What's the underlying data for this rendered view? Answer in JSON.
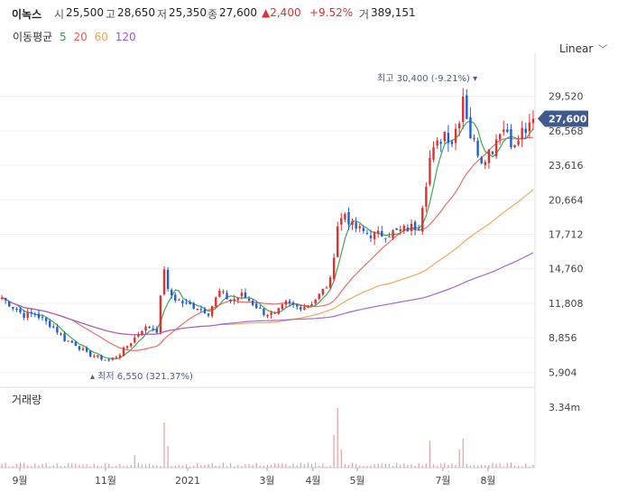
{
  "header": {
    "stock_name": "이녹스",
    "open_label": "시",
    "open_value": "25,500",
    "high_label": "고",
    "high_value": "28,650",
    "low_label": "저",
    "low_value": "25,350",
    "close_label": "종",
    "close_value": "27,600",
    "change_value": "▲2,400",
    "change_pct": "+9.52%",
    "volume_label": "거",
    "volume_value": "389,151"
  },
  "ma_legend": {
    "label": "이동평균",
    "items": [
      {
        "period": "5",
        "color": "#2e9e44"
      },
      {
        "period": "20",
        "color": "#e8615a"
      },
      {
        "period": "60",
        "color": "#f0a050"
      },
      {
        "period": "120",
        "color": "#9b59d0"
      }
    ]
  },
  "scale_button": {
    "label": "Linear",
    "icon": "chevron-down-icon"
  },
  "colors": {
    "up": "#e03131",
    "down": "#1f5fd1",
    "price_tag": "#3f5a8e",
    "annotation": "#4b5f8c",
    "volume": "#e6a0a0"
  },
  "chart_data": {
    "type": "candlestick",
    "price_axis": {
      "ticks": [
        5904,
        8856,
        11808,
        14760,
        17712,
        20664,
        23616,
        26568,
        29520
      ],
      "tick_labels": [
        "5,904",
        "8,856",
        "11,808",
        "14,760",
        "17,712",
        "20,664",
        "23,616",
        "26,568",
        "29,520"
      ],
      "range": [
        4700,
        32500
      ]
    },
    "current_price": {
      "value": 27600,
      "label": "27,600"
    },
    "high_annotation": {
      "value": 30400,
      "text": "최고 30,400 (-9.21%)"
    },
    "low_annotation": {
      "value": 6550,
      "text": "최저 6,550 (321.37%)"
    },
    "volume_panel": {
      "title": "거래량",
      "tick_value": 3340000,
      "tick_label": "3.34m"
    },
    "x_axis_labels": [
      "9월",
      "11월",
      "2021",
      "3월",
      "4월",
      "5월",
      "7월",
      "8월"
    ],
    "close_path": [
      [
        0,
        12300
      ],
      [
        3,
        11500
      ],
      [
        6,
        10800
      ],
      [
        9,
        10900
      ],
      [
        12,
        10200
      ],
      [
        14,
        9800
      ],
      [
        17,
        8700
      ],
      [
        20,
        8300
      ],
      [
        23,
        7500
      ],
      [
        26,
        7200
      ],
      [
        29,
        6900
      ],
      [
        32,
        7500
      ],
      [
        35,
        8500
      ],
      [
        38,
        9600
      ],
      [
        40,
        9800
      ],
      [
        42,
        9500
      ],
      [
        44,
        14900
      ],
      [
        45,
        12800
      ],
      [
        47,
        12200
      ],
      [
        50,
        11700
      ],
      [
        53,
        11500
      ],
      [
        56,
        11000
      ],
      [
        59,
        12800
      ],
      [
        62,
        12000
      ],
      [
        65,
        12500
      ],
      [
        68,
        11800
      ],
      [
        71,
        11000
      ],
      [
        74,
        10800
      ],
      [
        77,
        11800
      ],
      [
        80,
        11500
      ],
      [
        83,
        11600
      ],
      [
        86,
        12500
      ],
      [
        89,
        13700
      ],
      [
        91,
        18500
      ],
      [
        93,
        19500
      ],
      [
        95,
        18400
      ],
      [
        98,
        17900
      ],
      [
        101,
        17600
      ],
      [
        104,
        17800
      ],
      [
        107,
        17900
      ],
      [
        110,
        18200
      ],
      [
        113,
        18500
      ],
      [
        116,
        24200
      ],
      [
        118,
        25300
      ],
      [
        120,
        26500
      ],
      [
        122,
        25700
      ],
      [
        124,
        27800
      ],
      [
        125,
        29700
      ],
      [
        127,
        26200
      ],
      [
        130,
        24200
      ],
      [
        133,
        25100
      ],
      [
        135,
        26800
      ],
      [
        137,
        26600
      ],
      [
        139,
        25000
      ],
      [
        141,
        26500
      ],
      [
        143,
        26700
      ],
      [
        144,
        27600
      ]
    ],
    "volume_spikes": [
      [
        36,
        700000
      ],
      [
        44,
        2500000
      ],
      [
        45,
        1200000
      ],
      [
        90,
        1800000
      ],
      [
        91,
        3300000
      ],
      [
        92,
        1000000
      ],
      [
        116,
        1500000
      ],
      [
        124,
        1000000
      ],
      [
        125,
        1600000
      ]
    ]
  }
}
